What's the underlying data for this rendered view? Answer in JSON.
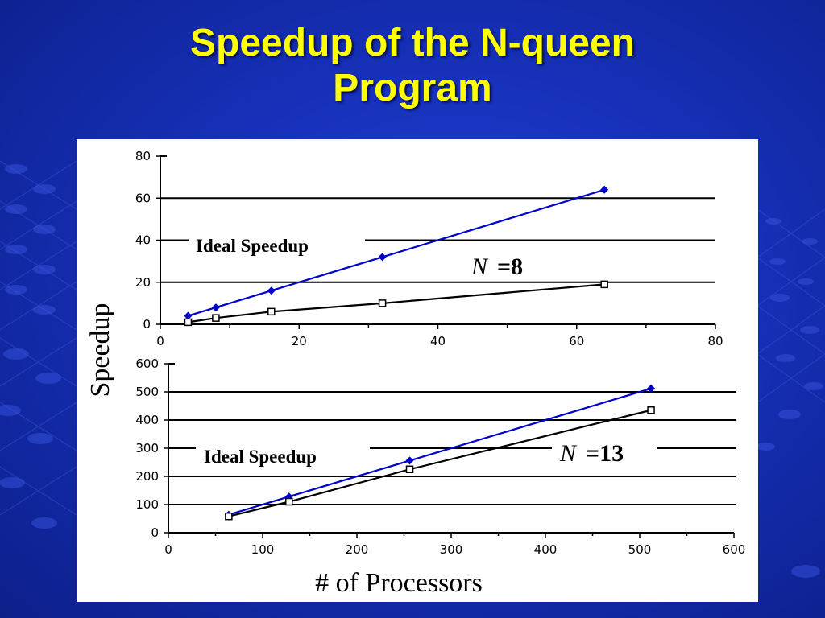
{
  "slide": {
    "title_line1": "Speedup of the N-queen",
    "title_line2": "Program"
  },
  "colors": {
    "title": "#ffff00",
    "ideal_series": "#0000cc",
    "measured_series": "#000000",
    "background": "#1630b8"
  },
  "shared_labels": {
    "ylabel": "Speedup",
    "xlabel": "# of Processors"
  },
  "chart_data": [
    {
      "type": "line",
      "xlim": [
        0,
        80
      ],
      "ylim": [
        0,
        80
      ],
      "xticks": [
        0,
        20,
        40,
        60,
        80
      ],
      "yticks": [
        0,
        20,
        40,
        60,
        80
      ],
      "grid": "horizontal",
      "annotations": [
        {
          "text": "Ideal Speedup"
        },
        {
          "text_italic": "N",
          "text": "=8"
        }
      ],
      "series": [
        {
          "marker": "filled-diamond",
          "points": [
            [
              4,
              4
            ],
            [
              8,
              8
            ],
            [
              16,
              16
            ],
            [
              32,
              32
            ],
            [
              64,
              64
            ]
          ]
        },
        {
          "marker": "open-square",
          "points": [
            [
              4,
              1
            ],
            [
              8,
              3
            ],
            [
              16,
              6
            ],
            [
              32,
              10
            ],
            [
              64,
              19
            ]
          ]
        }
      ]
    },
    {
      "type": "line",
      "xlim": [
        0,
        600
      ],
      "ylim": [
        0,
        600
      ],
      "xticks": [
        0,
        100,
        200,
        300,
        400,
        500,
        600
      ],
      "yticks": [
        0,
        100,
        200,
        300,
        400,
        500,
        600
      ],
      "grid": "horizontal",
      "annotations": [
        {
          "text": "Ideal Speedup"
        },
        {
          "text_italic": "N",
          "text": "=13"
        }
      ],
      "series": [
        {
          "marker": "filled-diamond",
          "points": [
            [
              64,
              64
            ],
            [
              128,
              128
            ],
            [
              256,
              256
            ],
            [
              512,
              512
            ]
          ]
        },
        {
          "marker": "open-square",
          "points": [
            [
              64,
              58
            ],
            [
              128,
              110
            ],
            [
              256,
              225
            ],
            [
              512,
              435
            ]
          ]
        }
      ]
    }
  ]
}
